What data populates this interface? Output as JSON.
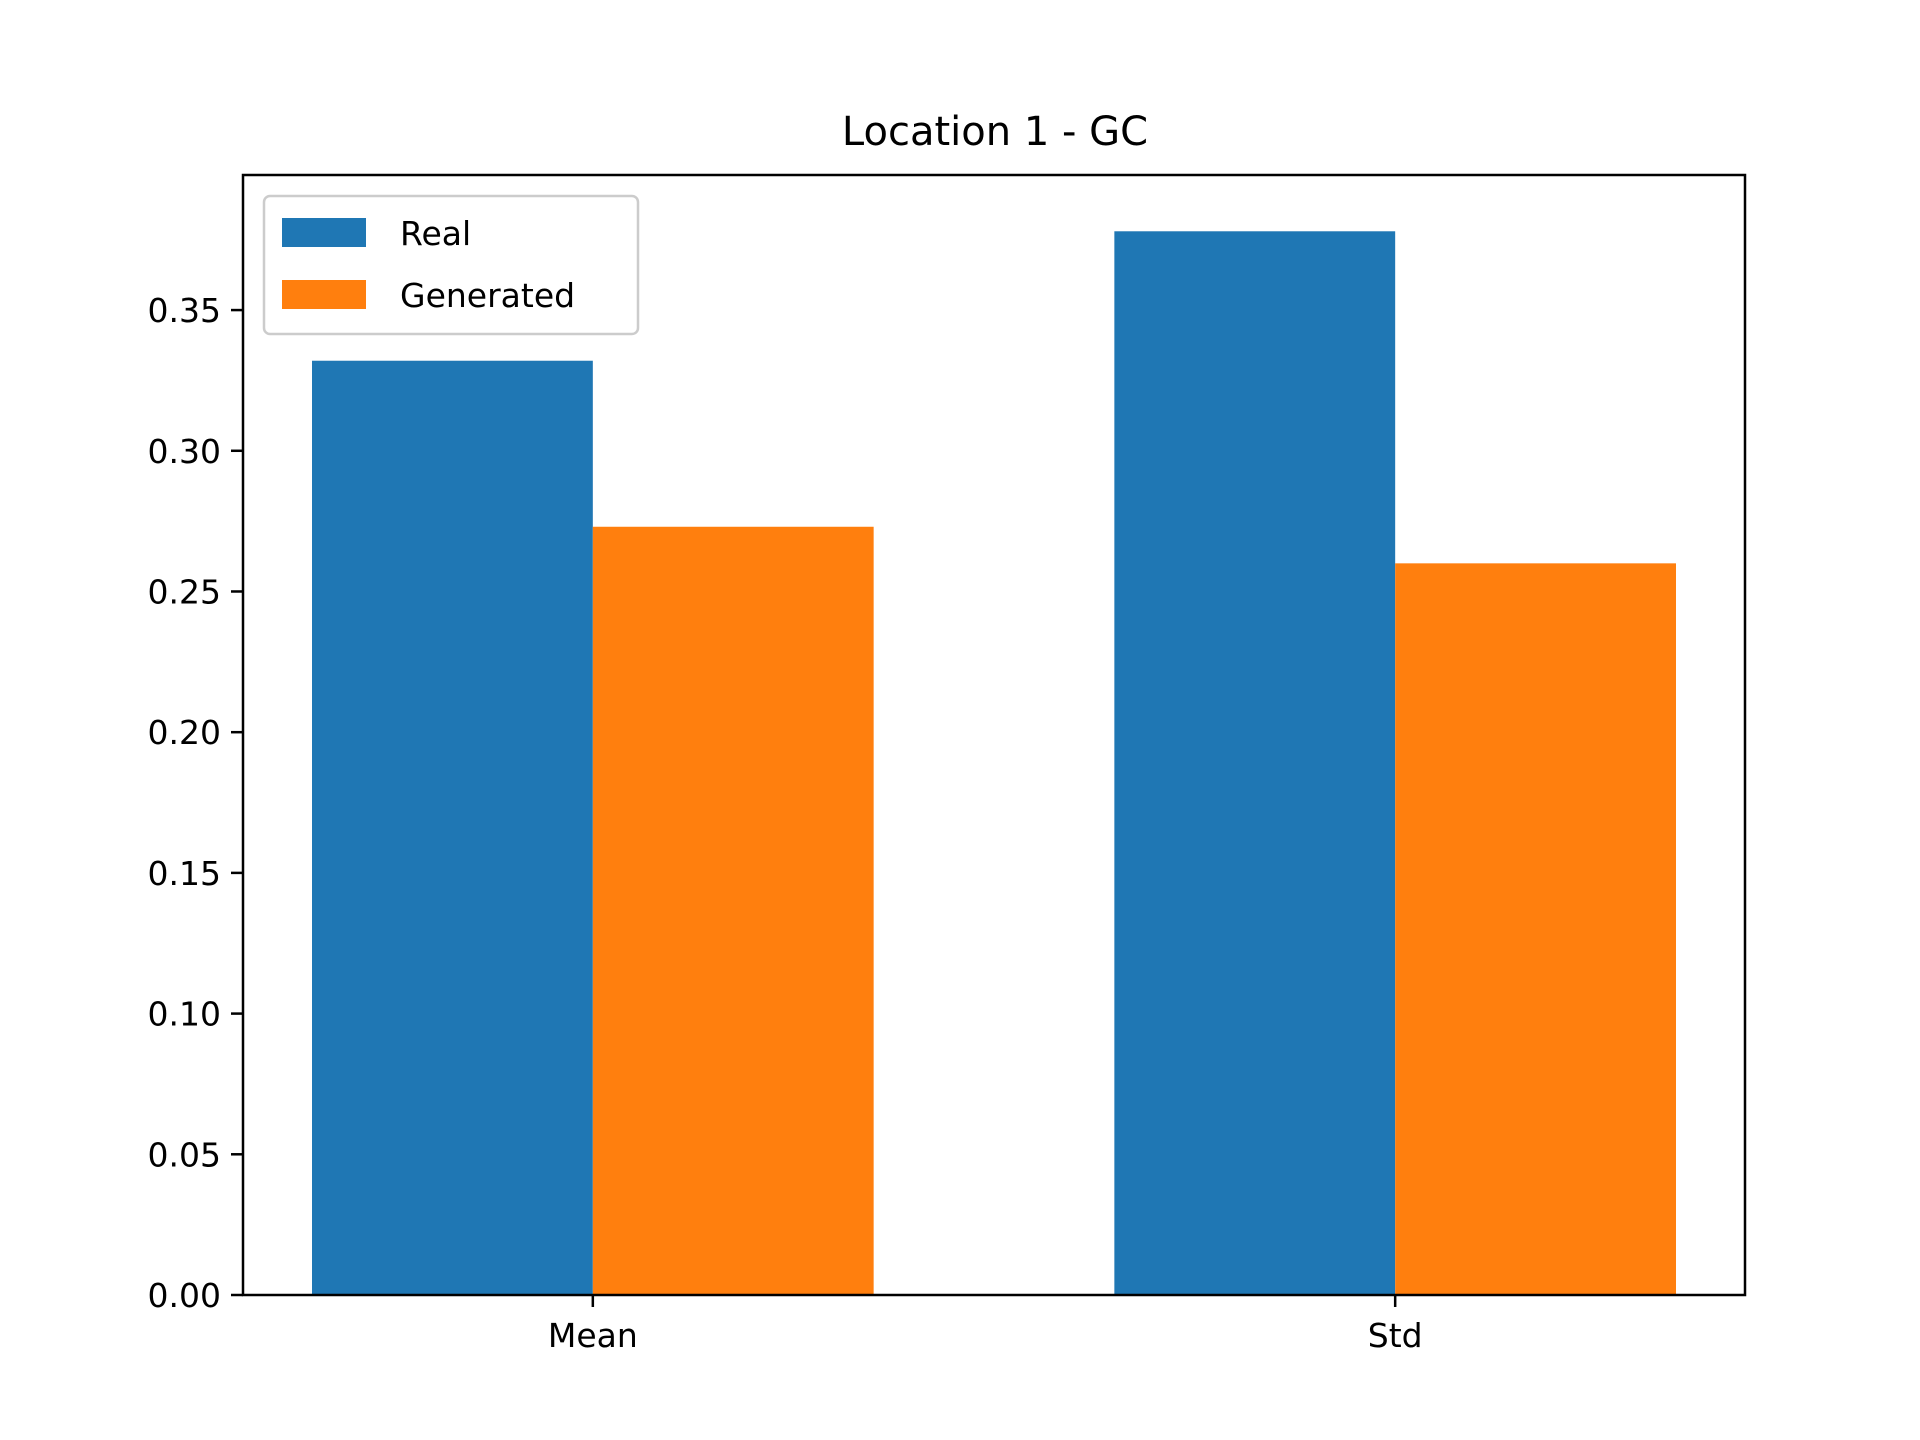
{
  "chart_data": {
    "type": "bar",
    "title": "Location 1 - GC",
    "xlabel": "",
    "ylabel": "",
    "categories": [
      "Mean",
      "Std"
    ],
    "series": [
      {
        "name": "Real",
        "color": "#1f77b4",
        "values": [
          0.332,
          0.378
        ]
      },
      {
        "name": "Generated",
        "color": "#ff7f0e",
        "values": [
          0.273,
          0.26
        ]
      }
    ],
    "ylim": [
      0,
      0.398
    ],
    "yticks": [
      0.0,
      0.05,
      0.1,
      0.15,
      0.2,
      0.25,
      0.3,
      0.35
    ],
    "ytick_labels": [
      "0.00",
      "0.05",
      "0.10",
      "0.15",
      "0.20",
      "0.25",
      "0.30",
      "0.35"
    ],
    "grid": false,
    "legend_position": "upper-left"
  }
}
